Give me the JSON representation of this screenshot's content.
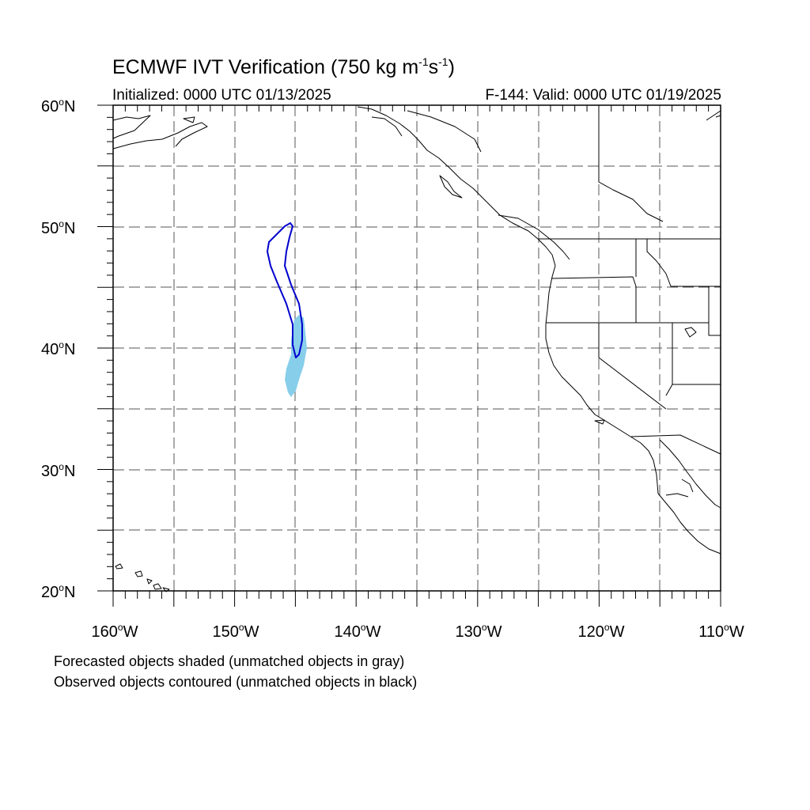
{
  "header": {
    "title_main": "ECMWF IVT Verification (750 kg m",
    "title_exp1": "-1",
    "title_mid": "s",
    "title_exp2": "-1",
    "title_end": ")",
    "initialized": "Initialized: 0000 UTC 01/13/2025",
    "valid": "F-144: Valid: 0000 UTC 01/19/2025"
  },
  "axes": {
    "lat_labels": [
      {
        "value": "60",
        "suffix": "N"
      },
      {
        "value": "50",
        "suffix": "N"
      },
      {
        "value": "40",
        "suffix": "N"
      },
      {
        "value": "30",
        "suffix": "N"
      },
      {
        "value": "20",
        "suffix": "N"
      }
    ],
    "lon_labels": [
      {
        "value": "160",
        "suffix": "W"
      },
      {
        "value": "150",
        "suffix": "W"
      },
      {
        "value": "140",
        "suffix": "W"
      },
      {
        "value": "130",
        "suffix": "W"
      },
      {
        "value": "120",
        "suffix": "W"
      },
      {
        "value": "110",
        "suffix": "W"
      }
    ],
    "deg_symbol": "o",
    "lat_range": [
      20,
      60
    ],
    "lon_range": [
      -160,
      -110
    ],
    "grid": "dashed every 5 degrees"
  },
  "legend": {
    "line1": "Forecasted objects shaded (unmatched objects in gray)",
    "line2": "Observed objects contoured (unmatched objects in black)"
  },
  "colors": {
    "forecast_fill": "#87ceeb",
    "observed_contour": "#0000cd",
    "coastline": "#000000",
    "grid": "#555555"
  }
}
